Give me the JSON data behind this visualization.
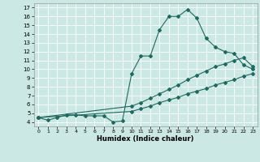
{
  "xlabel": "Humidex (Indice chaleur)",
  "bg_color": "#cce8e4",
  "grid_color": "#ffffff",
  "line_color": "#1a6b60",
  "xlim": [
    -0.5,
    23.5
  ],
  "ylim": [
    3.5,
    17.5
  ],
  "xticks": [
    0,
    1,
    2,
    3,
    4,
    5,
    6,
    7,
    8,
    9,
    10,
    11,
    12,
    13,
    14,
    15,
    16,
    17,
    18,
    19,
    20,
    21,
    22,
    23
  ],
  "yticks": [
    4,
    5,
    6,
    7,
    8,
    9,
    10,
    11,
    12,
    13,
    14,
    15,
    16,
    17
  ],
  "line1_x": [
    0,
    1,
    2,
    3,
    4,
    5,
    6,
    7,
    8,
    9,
    10,
    11,
    12,
    13,
    14,
    15,
    16,
    17,
    18,
    19,
    20,
    21,
    22,
    23
  ],
  "line1_y": [
    4.5,
    4.2,
    4.5,
    4.8,
    4.8,
    4.7,
    4.7,
    4.7,
    4.0,
    4.1,
    9.5,
    11.5,
    11.5,
    14.5,
    16.0,
    16.0,
    16.8,
    15.8,
    13.5,
    12.5,
    12.0,
    11.8,
    10.5,
    10.0
  ],
  "line2_x": [
    0,
    10,
    11,
    12,
    13,
    14,
    15,
    16,
    17,
    18,
    19,
    20,
    21,
    22,
    23
  ],
  "line2_y": [
    4.5,
    5.8,
    6.2,
    6.7,
    7.2,
    7.7,
    8.2,
    8.8,
    9.3,
    9.8,
    10.3,
    10.6,
    11.0,
    11.3,
    10.3
  ],
  "line3_x": [
    0,
    10,
    11,
    12,
    13,
    14,
    15,
    16,
    17,
    18,
    19,
    20,
    21,
    22,
    23
  ],
  "line3_y": [
    4.5,
    5.2,
    5.5,
    5.8,
    6.2,
    6.5,
    6.8,
    7.2,
    7.5,
    7.8,
    8.2,
    8.5,
    8.8,
    9.2,
    9.5
  ]
}
